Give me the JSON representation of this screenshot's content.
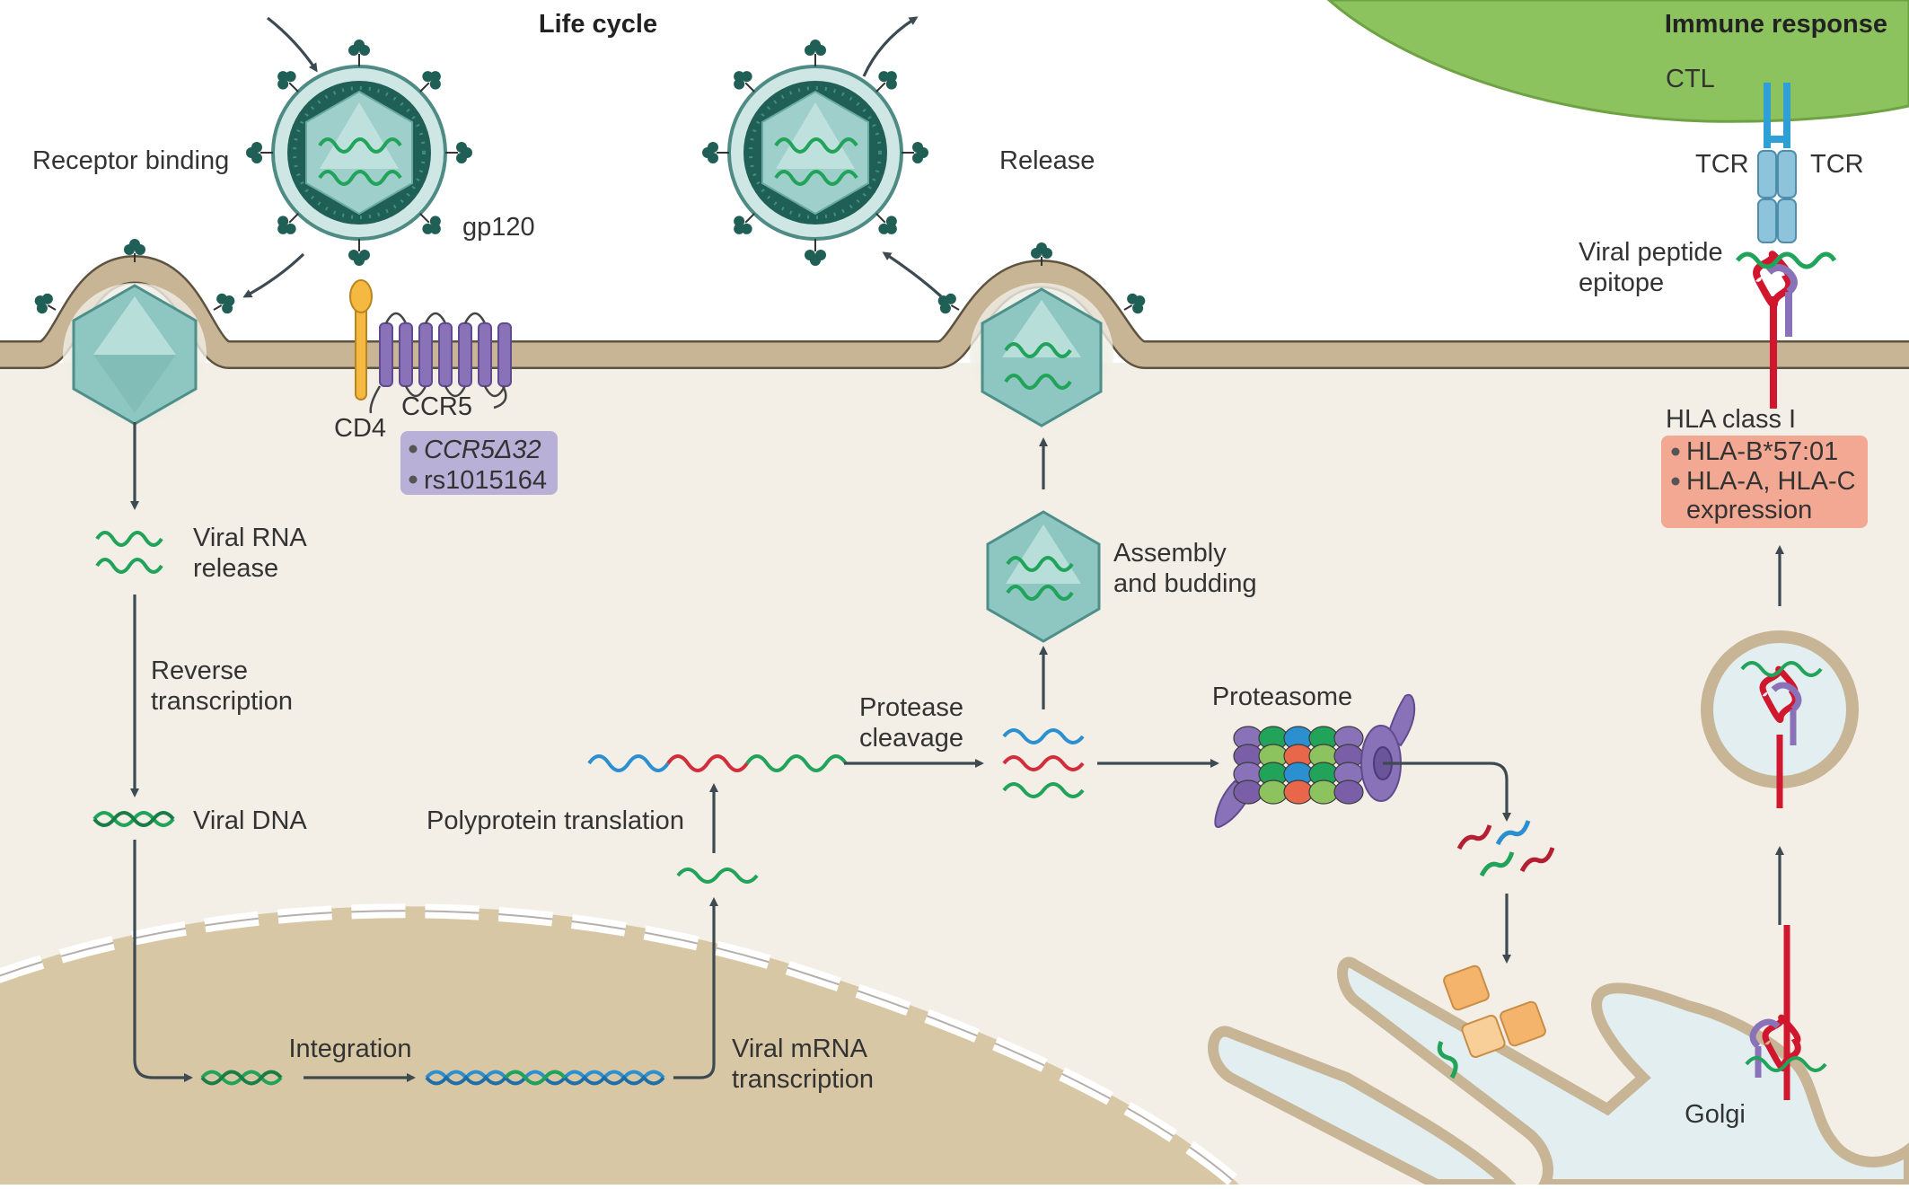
{
  "titles": {
    "life_cycle": "Life cycle",
    "immune_response": "Immune response"
  },
  "labels": {
    "receptor_binding": "Receptor binding",
    "gp120": "gp120",
    "cd4": "CD4",
    "ccr5": "CCR5",
    "release": "Release",
    "ctl": "CTL",
    "tcr_left": "TCR",
    "tcr_right": "TCR",
    "viral_peptide_1": "Viral peptide",
    "viral_peptide_2": "epitope",
    "hla_class_i": "HLA class I",
    "viral_rna_1": "Viral RNA",
    "viral_rna_2": "release",
    "rt_1": "Reverse",
    "rt_2": "transcription",
    "viral_dna": "Viral DNA",
    "integration": "Integration",
    "mrna_1": "Viral mRNA",
    "mrna_2": "transcription",
    "polyprotein": "Polyprotein translation",
    "protease_1": "Protease",
    "protease_2": "cleavage",
    "assembly_1": "Assembly",
    "assembly_2": "and budding",
    "proteasome": "Proteasome",
    "golgi": "Golgi"
  },
  "ccr5_box": {
    "items": [
      "CCR5Δ32",
      "rs1015164"
    ],
    "color": "#b9b0d8"
  },
  "hla_box": {
    "items": [
      "HLA-B*57:01",
      "HLA-A, HLA-C",
      "expression"
    ],
    "color": "#f2a893"
  },
  "colors": {
    "cytoplasm": "#f3efe6",
    "membrane": "#c7b595",
    "nucleus": "#d8c7a4",
    "capsid": "#9ecfcb",
    "virion_dark": "#1f5f55",
    "rna_green": "#21a35a",
    "rna_blue": "#2c8fd0",
    "rna_red": "#d22d3a",
    "purple": "#8a72b8",
    "hla_red": "#d0172d",
    "tcr_blue": "#2ea0d6",
    "cell_green": "#8cc35e",
    "er": "#e3eef1",
    "arrow": "#3d4a52"
  }
}
